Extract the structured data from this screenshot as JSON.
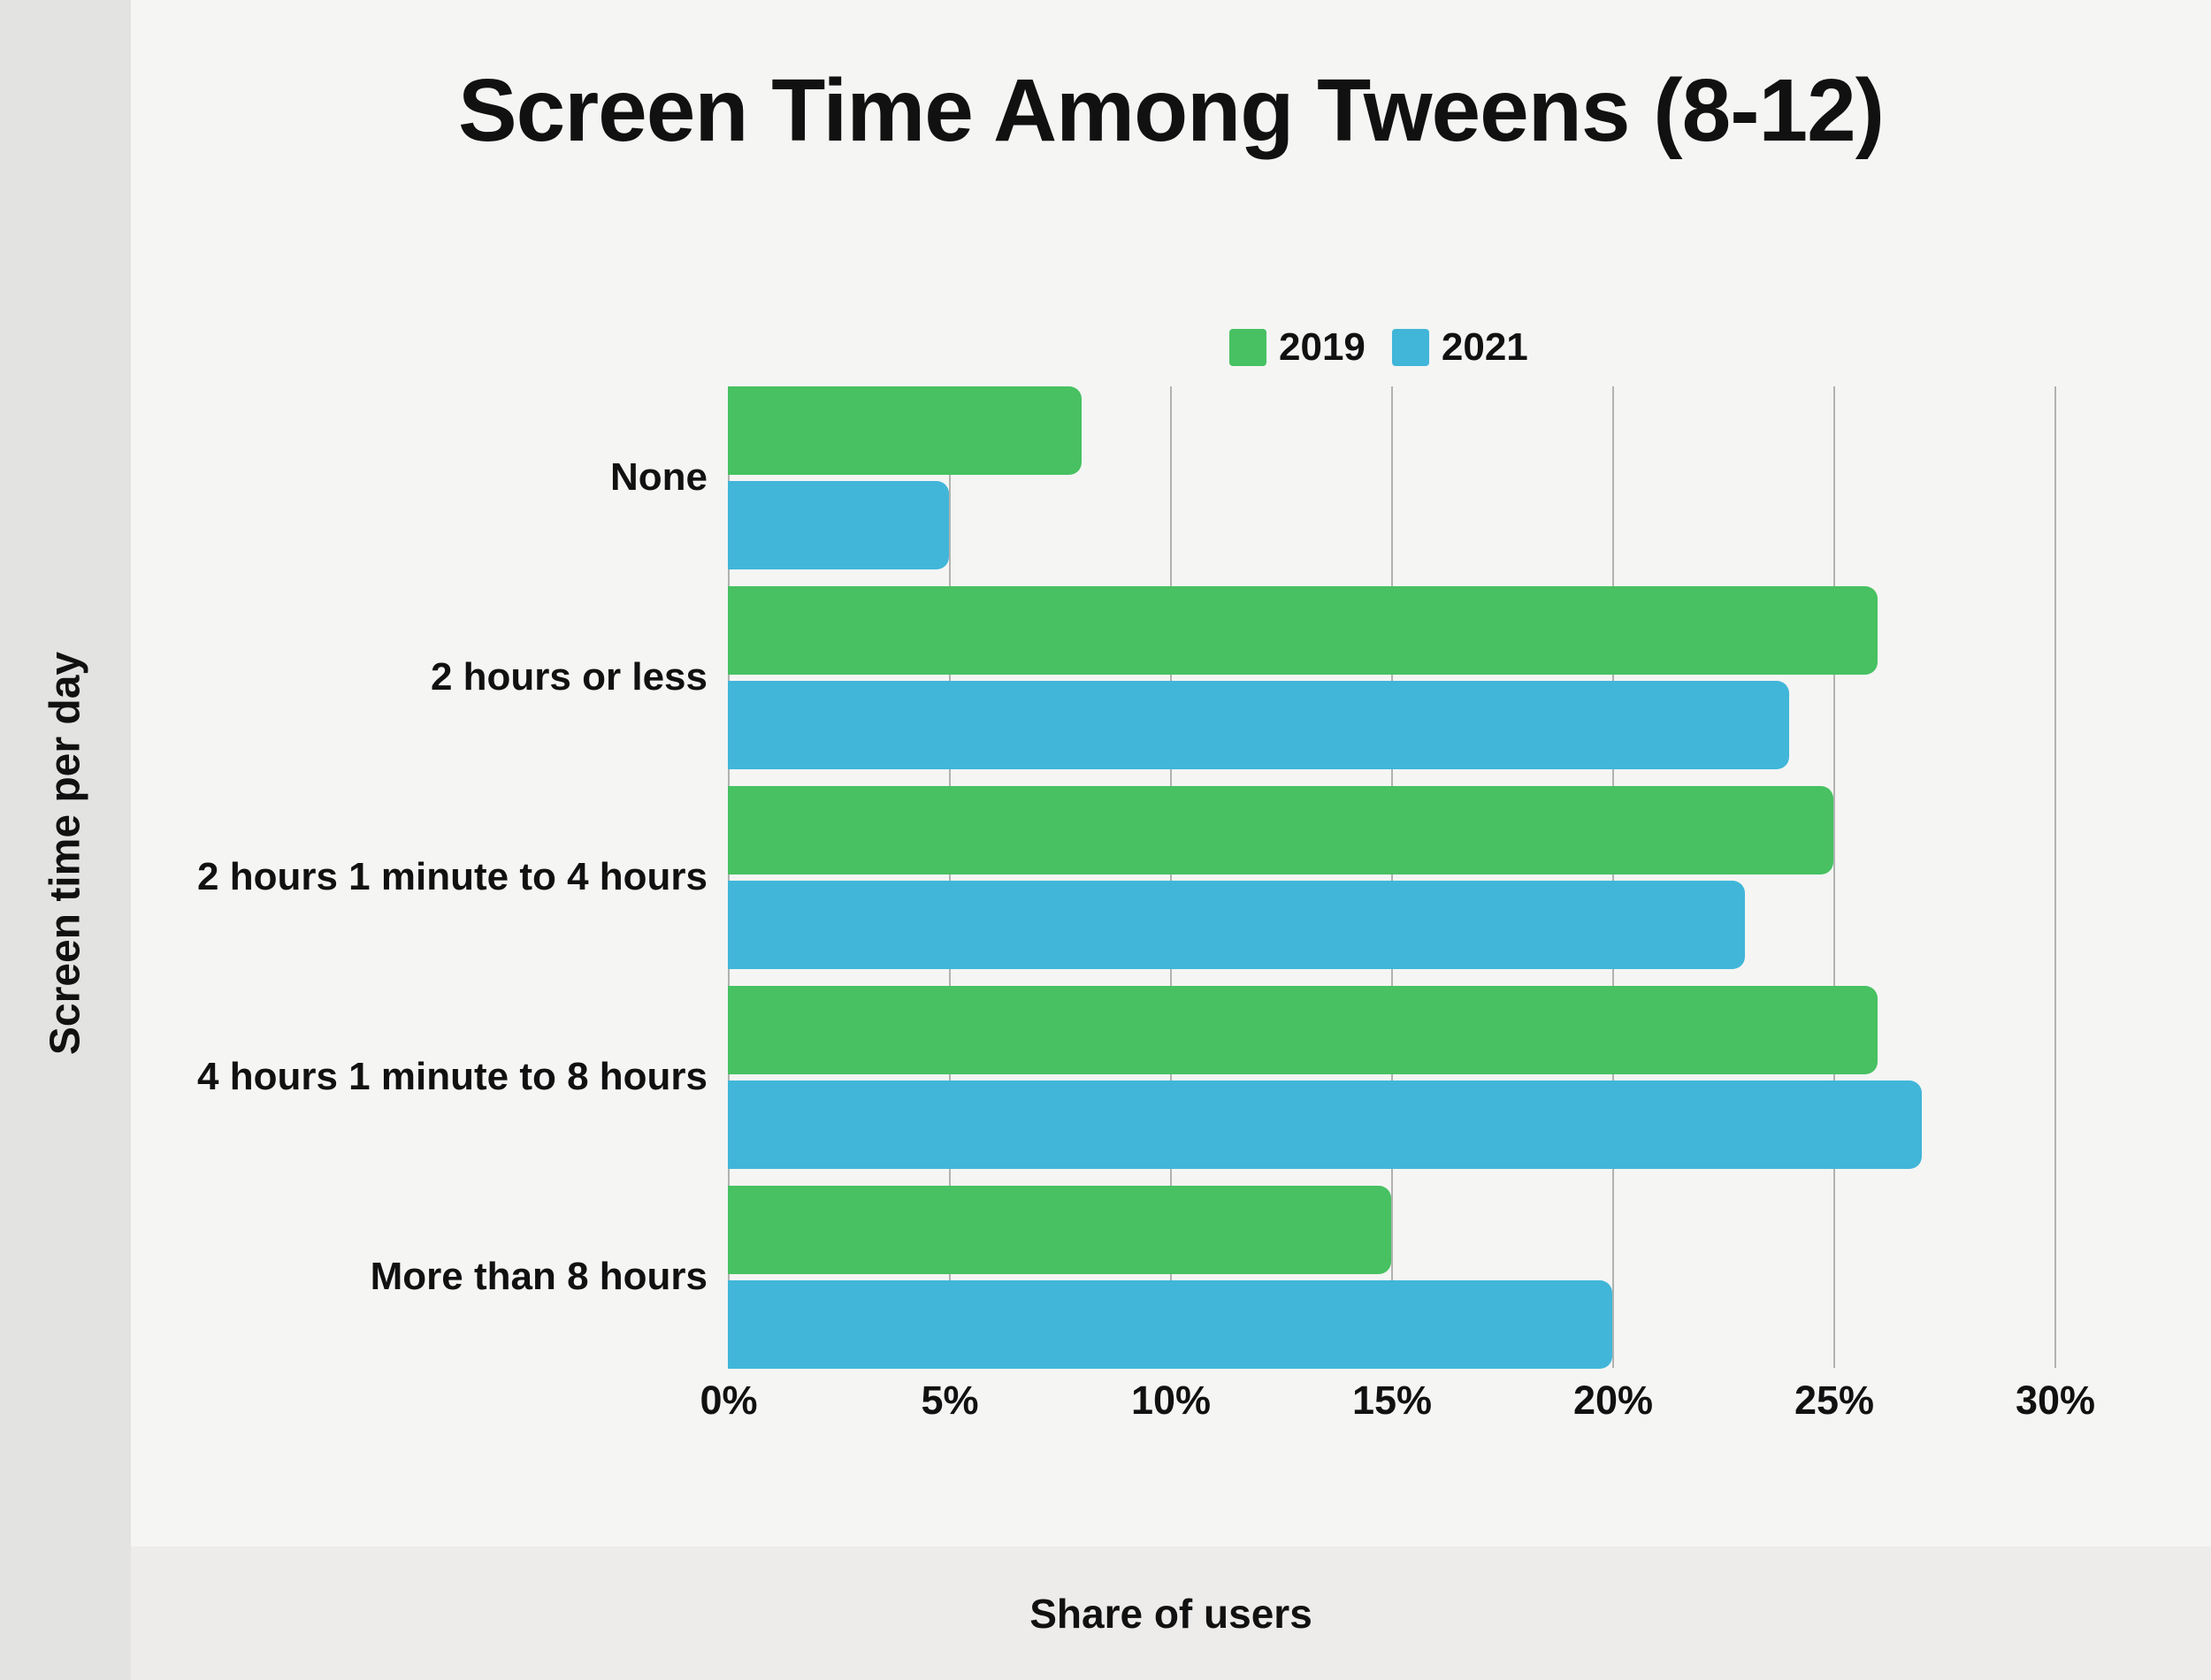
{
  "title": "Screen Time Among Tweens (8-12)",
  "axes": {
    "x_label": "Share of users",
    "y_label": "Screen time per day",
    "x_ticks": [
      "0%",
      "5%",
      "10%",
      "15%",
      "20%",
      "25%",
      "30%"
    ]
  },
  "legend": {
    "items": [
      {
        "label": "2019",
        "color": "#47c162"
      },
      {
        "label": "2021",
        "color": "#41b6d9"
      }
    ]
  },
  "chart_data": {
    "type": "bar",
    "orientation": "horizontal",
    "title": "Screen Time Among Tweens (8-12)",
    "xlabel": "Share of users",
    "ylabel": "Screen time per day",
    "unit": "%",
    "categories": [
      "None",
      "2 hours or less",
      "2 hours 1 minute to 4 hours",
      "4 hours 1 minute to 8 hours",
      "More than 8 hours"
    ],
    "series": [
      {
        "name": "2019",
        "color": "#47c162",
        "values": [
          8,
          26,
          25,
          26,
          15
        ]
      },
      {
        "name": "2021",
        "color": "#41b6d9",
        "values": [
          5,
          24,
          23,
          27,
          20
        ]
      }
    ],
    "xlim": [
      0,
      30
    ],
    "x_tick_step": 5,
    "grid": true,
    "legend_position": "top"
  },
  "colors": {
    "background": "#f5f5f4",
    "left_strip": "#e3e3e1",
    "bottom_band": "#edecea",
    "gridline": "#b0b3b0",
    "text": "#111111",
    "series_2019": "#47c162",
    "series_2021": "#41b6d9"
  }
}
